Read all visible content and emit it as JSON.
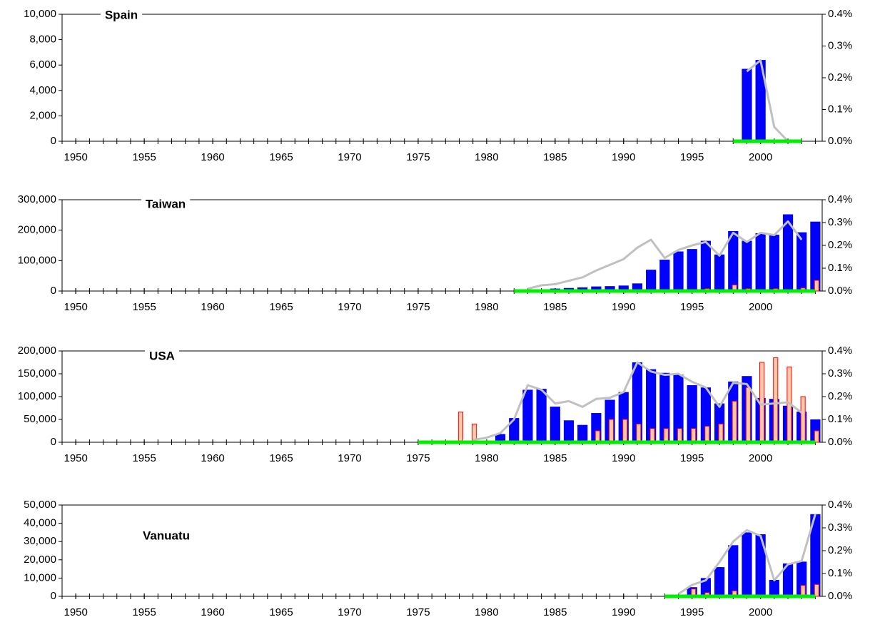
{
  "chart_data": [
    {
      "type": "bar",
      "title": "Spain",
      "x": [
        1998,
        1999,
        2000,
        2001,
        2002,
        2003
      ],
      "xlim": [
        1949,
        2004.5
      ],
      "xticks": [
        1950,
        1955,
        1960,
        1965,
        1970,
        1975,
        1980,
        1985,
        1990,
        1995,
        2000
      ],
      "ylim": [
        0,
        10000
      ],
      "yticks": [
        0,
        {
          "value": 2000,
          "label": "2,000"
        },
        {
          "value": 4000,
          "label": "4,000"
        },
        {
          "value": 6000,
          "label": "6,000"
        },
        {
          "value": 8000,
          "label": "8,000"
        },
        {
          "value": 10000,
          "label": "10,000"
        }
      ],
      "y2lim": [
        0,
        0.4
      ],
      "y2ticks": [
        {
          "value": 0,
          "label": "0.0%"
        },
        {
          "value": 0.1,
          "label": "0.1%"
        },
        {
          "value": 0.2,
          "label": "0.2%"
        },
        {
          "value": 0.3,
          "label": "0.3%"
        },
        {
          "value": 0.4,
          "label": "0.4%"
        }
      ],
      "series": [
        {
          "type": "bar",
          "color": "#0000ff",
          "values": [
            null,
            5700,
            6400,
            null,
            null,
            null
          ]
        },
        {
          "type": "bar",
          "color": "#ffc8a8",
          "edgecolor": "#ff0000",
          "values": [
            null,
            null,
            null,
            null,
            null,
            null
          ]
        },
        {
          "type": "line",
          "axis": "y2",
          "color": "#c0c0c0",
          "values": [
            null,
            0.22,
            0.255,
            0.045,
            0,
            null
          ]
        },
        {
          "type": "line",
          "color": "#00ee00",
          "values": [
            0,
            0,
            0,
            0,
            0,
            0
          ]
        }
      ]
    },
    {
      "type": "bar",
      "title": "Taiwan",
      "x": [
        1982,
        1983,
        1984,
        1985,
        1986,
        1987,
        1988,
        1989,
        1990,
        1991,
        1992,
        1993,
        1994,
        1995,
        1996,
        1997,
        1998,
        1999,
        2000,
        2001,
        2002,
        2003,
        2004
      ],
      "xlim": [
        1949,
        2004.5
      ],
      "xticks": [
        1950,
        1955,
        1960,
        1965,
        1970,
        1975,
        1980,
        1985,
        1990,
        1995,
        2000
      ],
      "ylim": [
        0,
        300000
      ],
      "yticks": [
        0,
        {
          "value": 100000,
          "label": "100,000"
        },
        {
          "value": 200000,
          "label": "200,000"
        },
        {
          "value": 300000,
          "label": "300,000"
        }
      ],
      "y2lim": [
        0,
        0.4
      ],
      "y2ticks": [
        {
          "value": 0,
          "label": "0.0%"
        },
        {
          "value": 0.1,
          "label": "0.1%"
        },
        {
          "value": 0.2,
          "label": "0.2%"
        },
        {
          "value": 0.3,
          "label": "0.3%"
        },
        {
          "value": 0.4,
          "label": "0.4%"
        }
      ],
      "series": [
        {
          "type": "bar",
          "color": "#0000ff",
          "values": [
            null,
            3000,
            5000,
            8000,
            10000,
            12000,
            15000,
            16000,
            18000,
            25000,
            70000,
            103000,
            130000,
            138000,
            165000,
            120000,
            197000,
            165000,
            190000,
            185000,
            252000,
            193000,
            228000
          ]
        },
        {
          "type": "bar",
          "color": "#ffc8a8",
          "edgecolor": "#ff0000",
          "values": [
            null,
            null,
            null,
            null,
            null,
            null,
            null,
            null,
            null,
            null,
            null,
            null,
            null,
            null,
            8000,
            null,
            20000,
            8000,
            null,
            8000,
            null,
            10000,
            35000
          ]
        },
        {
          "type": "line",
          "axis": "y2",
          "color": "#c0c0c0",
          "values": [
            null,
            0.01,
            0.025,
            0.03,
            0.045,
            0.06,
            0.09,
            0.115,
            0.14,
            0.19,
            0.225,
            0.145,
            0.18,
            0.2,
            0.215,
            0.155,
            0.255,
            0.215,
            0.255,
            0.245,
            0.305,
            0.225,
            null
          ]
        },
        {
          "type": "line",
          "color": "#00ee00",
          "values": [
            0,
            0,
            0,
            0,
            0,
            0,
            0,
            0,
            0,
            0,
            0,
            0,
            0,
            0,
            0,
            0,
            0,
            0,
            0,
            0,
            0,
            0,
            0
          ]
        }
      ]
    },
    {
      "type": "bar",
      "title": "USA",
      "x": [
        1975,
        1976,
        1977,
        1978,
        1979,
        1980,
        1981,
        1982,
        1983,
        1984,
        1985,
        1986,
        1987,
        1988,
        1989,
        1990,
        1991,
        1992,
        1993,
        1994,
        1995,
        1996,
        1997,
        1998,
        1999,
        2000,
        2001,
        2002,
        2003,
        2004
      ],
      "xlim": [
        1949,
        2004.5
      ],
      "xticks": [
        1950,
        1955,
        1960,
        1965,
        1970,
        1975,
        1980,
        1985,
        1990,
        1995,
        2000
      ],
      "ylim": [
        0,
        200000
      ],
      "yticks": [
        0,
        {
          "value": 50000,
          "label": "50,000"
        },
        {
          "value": 100000,
          "label": "100,000"
        },
        {
          "value": 150000,
          "label": "150,000"
        },
        {
          "value": 200000,
          "label": "200,000"
        }
      ],
      "y2lim": [
        0,
        0.4
      ],
      "y2ticks": [
        {
          "value": 0,
          "label": "0.0%"
        },
        {
          "value": 0.1,
          "label": "0.1%"
        },
        {
          "value": 0.2,
          "label": "0.2%"
        },
        {
          "value": 0.3,
          "label": "0.3%"
        },
        {
          "value": 0.4,
          "label": "0.4%"
        }
      ],
      "series": [
        {
          "type": "bar",
          "color": "#0000ff",
          "values": [
            null,
            null,
            null,
            null,
            null,
            3000,
            18000,
            53000,
            115000,
            117000,
            78000,
            48000,
            38000,
            64000,
            93000,
            110000,
            175000,
            160000,
            152000,
            148000,
            125000,
            120000,
            85000,
            133000,
            145000,
            97000,
            95000,
            80000,
            67000,
            50000
          ]
        },
        {
          "type": "bar",
          "color": "#ffc8a8",
          "edgecolor": "#ff0000",
          "values": [
            null,
            null,
            null,
            66000,
            40000,
            null,
            null,
            null,
            null,
            null,
            null,
            null,
            null,
            25000,
            50000,
            50000,
            40000,
            30000,
            30000,
            30000,
            30000,
            35000,
            40000,
            90000,
            120000,
            175000,
            185000,
            165000,
            100000,
            25000
          ]
        },
        {
          "type": "line",
          "axis": "y2",
          "color": "#c0c0c0",
          "values": [
            null,
            null,
            null,
            null,
            0.01,
            0.02,
            0.04,
            0.1,
            0.25,
            0.23,
            0.17,
            0.18,
            0.155,
            0.19,
            0.195,
            0.22,
            0.35,
            0.31,
            0.295,
            0.3,
            0.265,
            0.24,
            0.155,
            0.26,
            0.255,
            0.165,
            0.17,
            0.175,
            0.13,
            null
          ]
        },
        {
          "type": "line",
          "color": "#00ee00",
          "values": [
            0,
            0,
            0,
            0,
            0,
            0,
            0,
            0,
            0,
            0,
            0,
            0,
            0,
            0,
            0,
            0,
            0,
            0,
            0,
            0,
            0,
            0,
            0,
            0,
            0,
            0,
            0,
            0,
            0,
            0
          ]
        }
      ]
    },
    {
      "type": "bar",
      "title": "Vanuatu",
      "x": [
        1993,
        1994,
        1995,
        1996,
        1997,
        1998,
        1999,
        2000,
        2001,
        2002,
        2003,
        2004
      ],
      "xlim": [
        1949,
        2004.5
      ],
      "xticks": [
        1950,
        1955,
        1960,
        1965,
        1970,
        1975,
        1980,
        1985,
        1990,
        1995,
        2000
      ],
      "ylim": [
        0,
        50000
      ],
      "yticks": [
        0,
        {
          "value": 10000,
          "label": "10,000"
        },
        {
          "value": 20000,
          "label": "20,000"
        },
        {
          "value": 30000,
          "label": "30,000"
        },
        {
          "value": 40000,
          "label": "40,000"
        },
        {
          "value": 50000,
          "label": "50,000"
        }
      ],
      "y2lim": [
        0,
        0.4
      ],
      "y2ticks": [
        {
          "value": 0,
          "label": "0.0%"
        },
        {
          "value": 0.1,
          "label": "0.1%"
        },
        {
          "value": 0.2,
          "label": "0.2%"
        },
        {
          "value": 0.3,
          "label": "0.3%"
        },
        {
          "value": 0.4,
          "label": "0.4%"
        }
      ],
      "series": [
        {
          "type": "bar",
          "color": "#0000ff",
          "values": [
            null,
            null,
            5000,
            10000,
            16000,
            28000,
            35000,
            34000,
            9000,
            18000,
            19000,
            45000
          ]
        },
        {
          "type": "bar",
          "color": "#ffc8a8",
          "edgecolor": "#ff0000",
          "values": [
            null,
            null,
            4000,
            2000,
            null,
            3000,
            null,
            null,
            null,
            null,
            6000,
            6500
          ]
        },
        {
          "type": "line",
          "axis": "y2",
          "color": "#c0c0c0",
          "values": [
            null,
            0.01,
            0.05,
            0.07,
            0.15,
            0.24,
            0.29,
            0.265,
            0.07,
            0.14,
            0.155,
            0.36
          ]
        },
        {
          "type": "line",
          "color": "#00ee00",
          "values": [
            0,
            0,
            0,
            0,
            0,
            0,
            0,
            0,
            0,
            0,
            0,
            0
          ]
        }
      ]
    }
  ]
}
